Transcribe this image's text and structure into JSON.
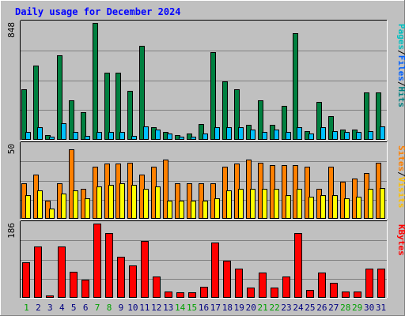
{
  "chart_data": {
    "type": "bar",
    "title": "Daily usage for December 2024",
    "categories": [
      "1",
      "2",
      "3",
      "4",
      "5",
      "6",
      "7",
      "8",
      "9",
      "10",
      "11",
      "12",
      "13",
      "14",
      "15",
      "16",
      "17",
      "18",
      "19",
      "20",
      "21",
      "22",
      "23",
      "24",
      "25",
      "26",
      "27",
      "28",
      "29",
      "30",
      "31"
    ],
    "weekend_days": [
      "1",
      "7",
      "8",
      "14",
      "15",
      "21",
      "22",
      "28",
      "29"
    ],
    "panels": [
      {
        "ymax_label": "848",
        "ylim": [
          0,
          848
        ],
        "right_label": {
          "parts": [
            "Pages",
            "/",
            "Files",
            "/",
            "Hits"
          ]
        },
        "series": [
          {
            "name": "Hits",
            "color": "#008040",
            "values": [
              365,
              537,
              37,
              611,
              287,
              202,
              848,
              487,
              487,
              354,
              679,
              90,
              57,
              37,
              43,
              115,
              637,
              424,
              367,
              107,
              284,
              107,
              245,
              771,
              65,
              277,
              174,
              74,
              74,
              342,
              342
            ]
          },
          {
            "name": "Files",
            "color": "#00c0ff",
            "values": [
              56,
              90,
              24,
              123,
              56,
              31,
              56,
              56,
              56,
              31,
              98,
              76,
              45,
              24,
              24,
              43,
              90,
              90,
              90,
              76,
              56,
              76,
              56,
              90,
              45,
              90,
              65,
              56,
              56,
              65,
              98
            ]
          },
          {
            "name": "Pages",
            "color": "#008080",
            "values": [
              0,
              0,
              0,
              0,
              0,
              0,
              0,
              0,
              0,
              0,
              0,
              0,
              0,
              0,
              0,
              0,
              0,
              0,
              0,
              0,
              0,
              0,
              0,
              0,
              0,
              0,
              0,
              0,
              0,
              0,
              0
            ]
          }
        ]
      },
      {
        "ymax_label": "50",
        "ylim": [
          0,
          50
        ],
        "right_label": {
          "parts": [
            "Sites",
            "/",
            "Visits"
          ]
        },
        "series": [
          {
            "name": "Visits",
            "color": "#ff8000",
            "values": [
              24,
              30,
              12,
              24,
              47,
              20,
              35,
              37,
              37,
              38,
              30,
              35,
              40,
              24,
              24,
              24,
              24,
              35,
              37,
              40,
              38,
              36,
              36,
              36,
              35,
              20,
              35,
              25,
              27,
              31,
              38
            ]
          },
          {
            "name": "Sites",
            "color": "#ffff00",
            "values": [
              16,
              19,
              7,
              17,
              19,
              14,
              22,
              23,
              24,
              23,
              20,
              22,
              12,
              12,
              12,
              12,
              14,
              19,
              20,
              20,
              20,
              20,
              16,
              20,
              15,
              16,
              16,
              14,
              15,
              20,
              21
            ]
          }
        ]
      },
      {
        "ymax_label": "186",
        "ylim": [
          0,
          186
        ],
        "right_label": {
          "parts": [
            "KBytes"
          ]
        },
        "series": [
          {
            "name": "KBytes",
            "color": "#ff0000",
            "values": [
              90,
              129,
              5,
              128,
              65,
              45,
              186,
              162,
              103,
              81,
              143,
              54,
              16,
              13,
              13,
              27,
              138,
              93,
              74,
              25,
              64,
              25,
              54,
              162,
              20,
              64,
              38,
              16,
              16,
              74,
              74
            ]
          }
        ]
      }
    ],
    "grid": true,
    "legend": "right"
  },
  "colors": {
    "background": "#c0c0c0",
    "plot": "#c0c0c0",
    "title": "#0000ff",
    "weekday": "#000080",
    "weekend": "#00a000",
    "Pages": "#00c0c0",
    "Files": "#0060ff",
    "Hits": "#008080",
    "Sites": "#ff8000",
    "Visits": "#ffc000",
    "KBytes": "#ff0000",
    "slash": "#000000"
  }
}
